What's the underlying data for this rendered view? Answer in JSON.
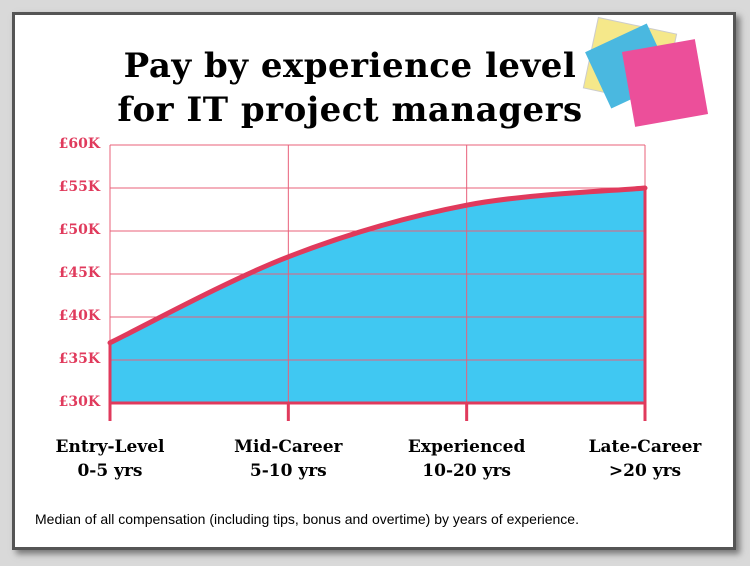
{
  "chart_data": {
    "type": "area",
    "title": "Pay by experience level\nfor IT project managers",
    "categories": [
      "Entry-Level\n0-5 yrs",
      "Mid-Career\n5-10 yrs",
      "Experienced\n10-20 yrs",
      "Late-Career\n>20 yrs"
    ],
    "values": [
      37000,
      47000,
      53000,
      55000
    ],
    "fill_color": "#40c8f2",
    "line_color": "#e03a5c",
    "grid_color": "#e8607a",
    "ylim": [
      30000,
      60000
    ],
    "yticks": [
      {
        "value": 30000,
        "label": "£30K"
      },
      {
        "value": 35000,
        "label": "£35K"
      },
      {
        "value": 40000,
        "label": "£40K"
      },
      {
        "value": 45000,
        "label": "£45K"
      },
      {
        "value": 50000,
        "label": "£50K"
      },
      {
        "value": 55000,
        "label": "£55K"
      },
      {
        "value": 60000,
        "label": "£60K"
      }
    ],
    "grid": true,
    "note": "Median of all compensation (including tips, bonus and overtime) by years of experience."
  }
}
